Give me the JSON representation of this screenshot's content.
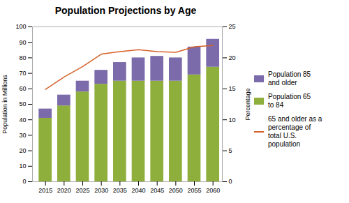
{
  "chart_data": {
    "type": "bar",
    "title": "Population Projections by Age",
    "x": [
      2015,
      2020,
      2025,
      2030,
      2035,
      2040,
      2045,
      2050,
      2055,
      2060
    ],
    "series": [
      {
        "name": "Population 65\nto 84",
        "type": "bar",
        "color": "#8faf3c",
        "values": [
          41,
          49,
          58,
          63,
          65,
          65,
          65,
          65,
          69,
          74
        ]
      },
      {
        "name": "Population 85\nand older",
        "type": "bar",
        "color": "#7b6bab",
        "values": [
          6,
          7,
          7,
          9,
          12,
          15,
          16,
          15,
          18,
          18
        ]
      },
      {
        "name": "65 and older as a\npercentage of\ntotal U.S.\npopulation",
        "type": "line",
        "axis": "y2",
        "color": "#d4622a",
        "values": [
          14.9,
          16.9,
          18.6,
          20.6,
          21.0,
          21.3,
          21.0,
          20.9,
          21.8,
          22.0
        ]
      }
    ],
    "stacked": true,
    "xlim": [
      2011.5,
      2062.5
    ],
    "xticks": [
      2015,
      2020,
      2025,
      2030,
      2035,
      2040,
      2045,
      2050,
      2055,
      2060
    ],
    "ylabel": "Population in Millions",
    "ylim": [
      0,
      100
    ],
    "yticks": [
      0,
      10,
      20,
      30,
      40,
      50,
      60,
      70,
      80,
      90,
      100
    ],
    "y2label": "Percentage",
    "y2lim": [
      0,
      25
    ],
    "y2ticks": [
      0,
      5,
      10,
      15,
      20,
      25
    ],
    "grid": false,
    "legend": "right"
  }
}
